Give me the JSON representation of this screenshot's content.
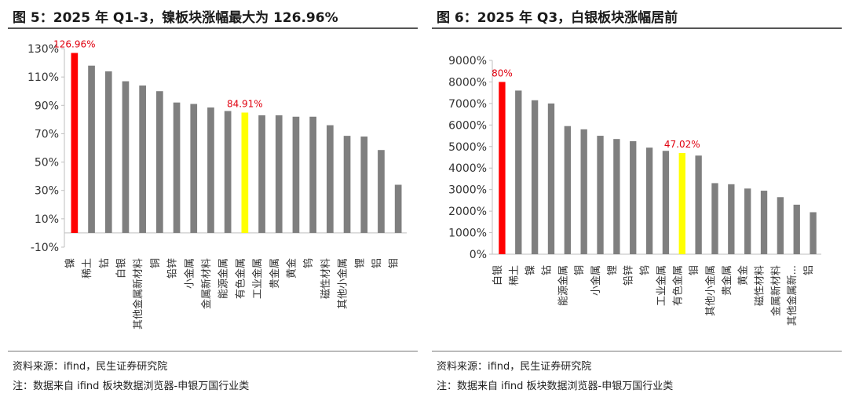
{
  "figures": [
    {
      "title": "图 5：2025 年 Q1-3，镍板块涨幅最大为 126.96%",
      "source": "资料来源：ifind，民生证券研究院",
      "note": "注：数据来自 ifind 板块数据浏览器-申银万国行业类",
      "colors": {
        "default": "#7f7f7f",
        "highlight_max": "#ff0000",
        "highlight_sector": "#ffff00",
        "label": "#e0000f"
      }
    },
    {
      "title": "图 6：2025 年 Q3，白银板块涨幅居前",
      "source": "资料来源：ifind，民生证券研究院",
      "note": "注：数据来自 ifind 板块数据浏览器-申银万国行业类",
      "colors": {
        "default": "#7f7f7f",
        "highlight_max": "#ff0000",
        "highlight_sector": "#ffff00",
        "label": "#e0000f"
      }
    }
  ],
  "chart_data": [
    {
      "type": "bar",
      "categories": [
        "镍",
        "稀土",
        "钴",
        "白银",
        "其他金属新材料",
        "铜",
        "铅锌",
        "小金属",
        "金属新材料",
        "能源金属",
        "有色金属",
        "工业金属",
        "贵金属",
        "黄金",
        "钨",
        "磁性材料",
        "其他小金属",
        "锂",
        "铝",
        "钼"
      ],
      "values": [
        126.96,
        118,
        114,
        107,
        104,
        100,
        92,
        91,
        88.5,
        86,
        84.91,
        83,
        83,
        82,
        82,
        76,
        68.5,
        68,
        58.5,
        34
      ],
      "ytick_labels": [
        "130%",
        "110%",
        "90%",
        "70%",
        "50%",
        "30%",
        "10%",
        "-10%"
      ],
      "ylim": [
        -10,
        130
      ],
      "data_labels": [
        {
          "category": "镍",
          "text": "126.96%"
        },
        {
          "category": "有色金属",
          "text": "84.91%"
        }
      ],
      "highlight_max": "镍",
      "highlight_sector": "有色金属",
      "grid": false,
      "legend": "none"
    },
    {
      "type": "bar",
      "categories": [
        "白银",
        "稀土",
        "镍",
        "钴",
        "能源金属",
        "铜",
        "小金属",
        "锂",
        "铅锌",
        "钨",
        "工业金属",
        "有色金属",
        "钼",
        "其他小金属",
        "贵金属",
        "黄金",
        "磁性材料",
        "金属新材料",
        "其他金属新...",
        "铝"
      ],
      "values": [
        80,
        76,
        71.5,
        70,
        59.5,
        58,
        55,
        53.5,
        52.5,
        49.5,
        48,
        47.02,
        45.8,
        33,
        32.5,
        30.5,
        29.5,
        26.5,
        23,
        19.5
      ],
      "ytick_labels": [
        "9000%",
        "8000%",
        "7000%",
        "6000%",
        "5000%",
        "4000%",
        "3000%",
        "2000%",
        "1000%",
        "0%"
      ],
      "ylim": [
        0,
        90
      ],
      "data_labels": [
        {
          "category": "白银",
          "text": "80%"
        },
        {
          "category": "有色金属",
          "text": "47.02%"
        }
      ],
      "highlight_max": "白银",
      "highlight_sector": "有色金属",
      "grid": false,
      "legend": "none"
    }
  ]
}
